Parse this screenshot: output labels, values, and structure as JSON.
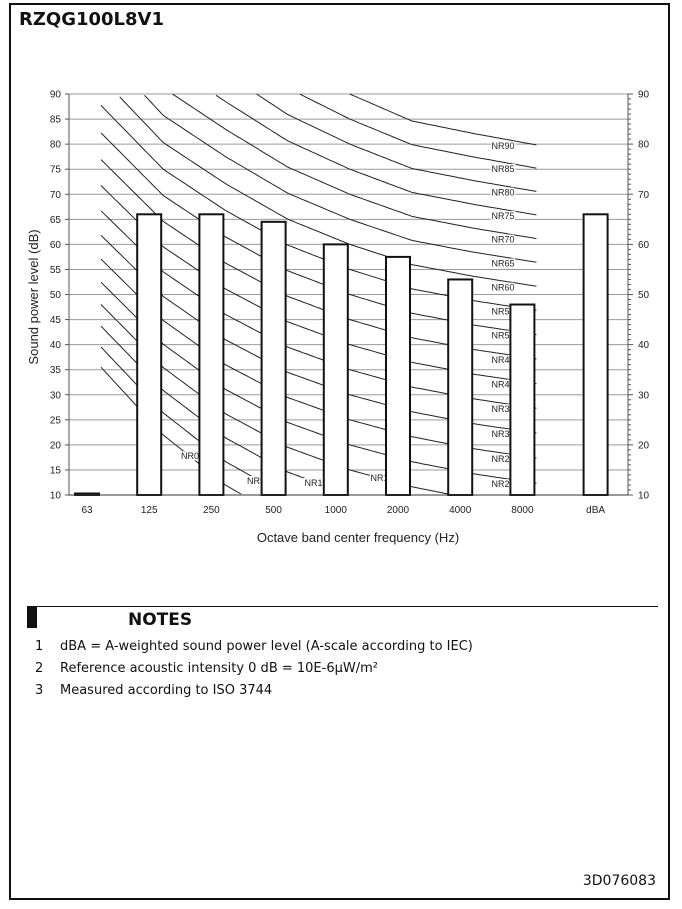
{
  "model": "RZQG100L8V1",
  "chart_data": {
    "type": "bar",
    "categories": [
      "63",
      "125",
      "250",
      "500",
      "1000",
      "2000",
      "4000",
      "8000",
      "dBA"
    ],
    "values": [
      10,
      66,
      66,
      64.5,
      60,
      57.5,
      53,
      48,
      66
    ],
    "ylabel": "Sound power level (dB)",
    "xlabel": "Octave band center frequency (Hz)",
    "ylim": [
      10,
      90
    ],
    "yticks": [
      10,
      15,
      20,
      25,
      30,
      35,
      40,
      45,
      50,
      55,
      60,
      65,
      70,
      75,
      80,
      85,
      90
    ],
    "right_yticks": [
      10,
      20,
      30,
      40,
      50,
      60,
      70,
      80,
      90
    ],
    "grid": true,
    "nr_curves": {
      "labels": [
        "NR0",
        "NR5",
        "NR10",
        "NR15",
        "NR20",
        "NR25",
        "NR30",
        "NR35",
        "NR40",
        "NR45",
        "NR50",
        "NR55",
        "NR60",
        "NR65",
        "NR70",
        "NR75",
        "NR80",
        "NR85",
        "NR90"
      ],
      "values": [
        0,
        5,
        10,
        15,
        20,
        25,
        30,
        35,
        40,
        45,
        50,
        55,
        60,
        65,
        70,
        75,
        80,
        85,
        90
      ],
      "bands": [
        "63",
        "125",
        "250",
        "500",
        "1000",
        "2000",
        "4000",
        "8000"
      ]
    }
  },
  "notes": {
    "title": "NOTES",
    "items": [
      {
        "num": "1",
        "text": "dBA = A-weighted sound power level (A-scale according to IEC)"
      },
      {
        "num": "2",
        "text": "Reference acoustic intensity 0 dB = 10E-6µW/m²"
      },
      {
        "num": "3",
        "text": "Measured according to ISO 3744"
      }
    ]
  },
  "doc_code": "3D076083"
}
